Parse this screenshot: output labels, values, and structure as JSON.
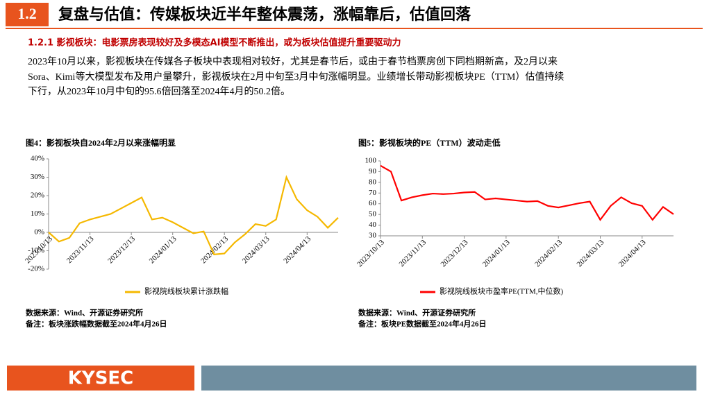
{
  "header": {
    "number": "1.2",
    "title": "复盘与估值：传媒板块近半年整体震荡，涨幅靠后，估值回落"
  },
  "subtitle": "1.2.1 影视板块：电影票房表现较好及多模态AI模型不断推出，或为板块估值提升重要驱动力",
  "paragraph": [
    "2023年10月以来，影视板块在传媒各子板块中表现相对较好，尤其是春节后，或由于春节档票房创下同档期新高，及2月以来",
    "Sora、Kimi等大模型发布及用户量攀升，影视板块在2月中旬至3月中旬涨幅明显。业绩增长带动影视板块PE（TTM）估值持续",
    "下行，从2023年10月中旬的95.6倍回落至2024年4月的50.2倍。"
  ],
  "chart_data": [
    {
      "type": "line",
      "title": "图4：影视板块自2024年2月以来涨幅明显",
      "categories": [
        "2023/10/13",
        null,
        null,
        null,
        "2023/11/13",
        null,
        null,
        null,
        "2023/12/13",
        null,
        null,
        null,
        "2024/01/13",
        null,
        null,
        null,
        null,
        "2024/02/13",
        null,
        null,
        null,
        "2024/03/13",
        null,
        null,
        null,
        "2024/04/13",
        null,
        null,
        null
      ],
      "series": [
        {
          "name": "影视院线板块累计涨跌幅",
          "color": "#f5b800",
          "values": [
            0,
            -5,
            -3,
            5,
            7,
            8.5,
            10,
            13,
            16,
            19,
            7,
            8,
            5.5,
            2.5,
            -0.5,
            0.5,
            -12,
            -11.5,
            -5.5,
            -1,
            4.5,
            3.5,
            7,
            30,
            18,
            12,
            8.5,
            2.5,
            8
          ]
        }
      ],
      "ylim": [
        -20,
        40
      ],
      "yticks": [
        {
          "value": -20,
          "label": "-20%"
        },
        {
          "value": -10,
          "label": "-10%"
        },
        {
          "value": 0,
          "label": "0%"
        },
        {
          "value": 10,
          "label": "10%"
        },
        {
          "value": 20,
          "label": "20%"
        },
        {
          "value": 30,
          "label": "30%"
        },
        {
          "value": 40,
          "label": "40%"
        }
      ],
      "notes": [
        "数据来源：Wind、开源证券研究所",
        "备注：板块涨跌幅数据截至2024年4月26日"
      ]
    },
    {
      "type": "line",
      "title": "图5：影视板块的PE（TTM）波动走低",
      "categories": [
        "2023/10/13",
        null,
        null,
        null,
        "2023/11/13",
        null,
        null,
        null,
        "2023/12/13",
        null,
        null,
        null,
        "2024/01/13",
        null,
        null,
        null,
        null,
        "2024/02/13",
        null,
        null,
        null,
        "2024/03/13",
        null,
        null,
        null,
        "2024/04/13",
        null,
        null,
        null
      ],
      "series": [
        {
          "name": "影视院线板块市盈率PE(TTM,中位数)",
          "color": "#ff0000",
          "values": [
            95.6,
            90,
            63,
            66,
            68,
            69.5,
            69,
            69.5,
            70.5,
            71,
            64,
            65,
            64,
            63,
            62,
            62.5,
            58,
            56.5,
            58.5,
            60.5,
            62,
            45,
            58,
            66,
            60.5,
            58,
            45,
            57,
            50.2
          ]
        }
      ],
      "ylim": [
        30,
        100
      ],
      "yticks": [
        30,
        40,
        50,
        60,
        70,
        80,
        90,
        100
      ],
      "notes": [
        "数据来源：Wind、开源证券研究所",
        "备注：板块PE数据截至2024年4月26日"
      ]
    }
  ],
  "footer": {
    "logo": "KYSEC"
  }
}
